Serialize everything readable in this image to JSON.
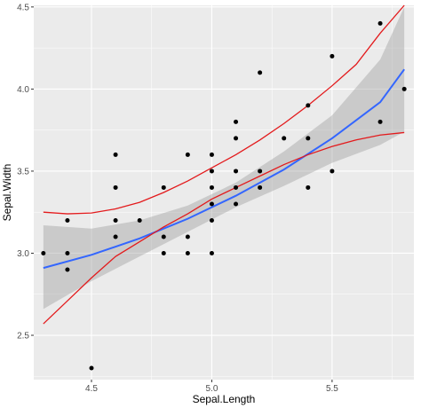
{
  "chart_data": {
    "type": "scatter",
    "xlabel": "Sepal.Length",
    "ylabel": "Sepal.Width",
    "xlim": [
      4.26,
      5.84
    ],
    "ylim": [
      2.23,
      4.51
    ],
    "x_ticks": [
      4.5,
      5.0,
      5.5
    ],
    "x_tick_labels": [
      "4.5",
      "5.0",
      "5.5"
    ],
    "y_ticks": [
      2.5,
      3.0,
      3.5,
      4.0,
      4.5
    ],
    "y_tick_labels": [
      "2.5",
      "3.0",
      "3.5",
      "4.0",
      "4.5"
    ],
    "grid": true,
    "legend": "none",
    "points": [
      [
        4.3,
        3.0
      ],
      [
        4.4,
        3.2
      ],
      [
        4.4,
        3.0
      ],
      [
        4.4,
        2.9
      ],
      [
        4.5,
        2.3
      ],
      [
        4.6,
        3.6
      ],
      [
        4.6,
        3.4
      ],
      [
        4.6,
        3.2
      ],
      [
        4.6,
        3.1
      ],
      [
        4.7,
        3.2
      ],
      [
        4.8,
        3.4
      ],
      [
        4.8,
        3.1
      ],
      [
        4.8,
        3.0
      ],
      [
        4.9,
        3.6
      ],
      [
        4.9,
        3.1
      ],
      [
        4.9,
        3.0
      ],
      [
        5.0,
        3.6
      ],
      [
        5.0,
        3.5
      ],
      [
        5.0,
        3.4
      ],
      [
        5.0,
        3.3
      ],
      [
        5.0,
        3.2
      ],
      [
        5.0,
        3.0
      ],
      [
        5.1,
        3.8
      ],
      [
        5.1,
        3.7
      ],
      [
        5.1,
        3.5
      ],
      [
        5.1,
        3.4
      ],
      [
        5.1,
        3.3
      ],
      [
        5.2,
        4.1
      ],
      [
        5.2,
        3.5
      ],
      [
        5.2,
        3.4
      ],
      [
        5.3,
        3.7
      ],
      [
        5.4,
        3.9
      ],
      [
        5.4,
        3.7
      ],
      [
        5.4,
        3.4
      ],
      [
        5.5,
        4.2
      ],
      [
        5.5,
        3.5
      ],
      [
        5.7,
        4.4
      ],
      [
        5.7,
        3.8
      ],
      [
        5.8,
        4.0
      ]
    ],
    "smooth_fit": {
      "x": [
        4.3,
        4.5,
        4.7,
        4.9,
        5.1,
        5.3,
        5.5,
        5.7,
        5.8
      ],
      "y": [
        2.91,
        2.99,
        3.09,
        3.21,
        3.35,
        3.51,
        3.7,
        3.92,
        4.12
      ],
      "ci_lower": [
        2.66,
        2.83,
        2.98,
        3.13,
        3.28,
        3.41,
        3.55,
        3.66,
        3.74
      ],
      "ci_upper": [
        3.17,
        3.15,
        3.2,
        3.29,
        3.43,
        3.62,
        3.84,
        4.18,
        4.5
      ]
    },
    "red_bands": {
      "upper": {
        "x": [
          4.3,
          4.4,
          4.5,
          4.6,
          4.7,
          4.8,
          4.9,
          5.0,
          5.1,
          5.2,
          5.3,
          5.4,
          5.5,
          5.6,
          5.7,
          5.8
        ],
        "y": [
          3.25,
          3.24,
          3.245,
          3.27,
          3.31,
          3.37,
          3.44,
          3.52,
          3.6,
          3.69,
          3.79,
          3.9,
          4.02,
          4.15,
          4.34,
          4.51
        ]
      },
      "lower": {
        "x": [
          4.3,
          4.4,
          4.5,
          4.6,
          4.7,
          4.8,
          4.9,
          5.0,
          5.1,
          5.2,
          5.3,
          5.4,
          5.5,
          5.6,
          5.7,
          5.8
        ],
        "y": [
          2.57,
          2.71,
          2.85,
          2.98,
          3.07,
          3.16,
          3.24,
          3.33,
          3.4,
          3.47,
          3.54,
          3.6,
          3.65,
          3.69,
          3.72,
          3.735
        ]
      }
    },
    "colors": {
      "panel": "#EBEBEB",
      "grid_major": "#FFFFFF",
      "points": "#000000",
      "fit_line": "#3366FF",
      "ci_ribbon": "#999999",
      "red_line": "#E31A1C"
    }
  }
}
